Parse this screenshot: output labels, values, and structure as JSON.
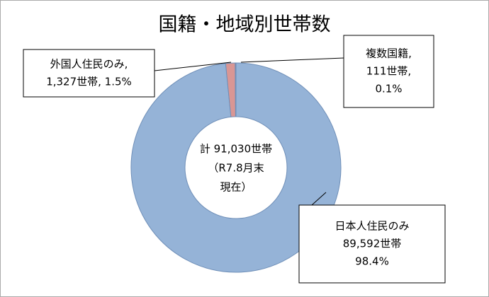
{
  "chart_data": {
    "type": "pie",
    "donut": true,
    "title": "国籍・地域別世帯数",
    "categories": [
      "日本人住民のみ",
      "外国人住民のみ",
      "複数国籍"
    ],
    "values": [
      89592,
      1327,
      111
    ],
    "colors": [
      "#95b3d7",
      "#d99694",
      "#c0504d"
    ],
    "label_lines": [
      [
        "日本人住民のみ",
        "89,592世帯",
        "98.4%"
      ],
      [
        "外国人住民のみ,",
        "1,327世帯, 1.5%"
      ],
      [
        "複数国籍,",
        "111世帯,",
        "0.1%"
      ]
    ],
    "center_lines": [
      "計 91,030世帯",
      "（R7.8月末",
      "現在）"
    ]
  }
}
